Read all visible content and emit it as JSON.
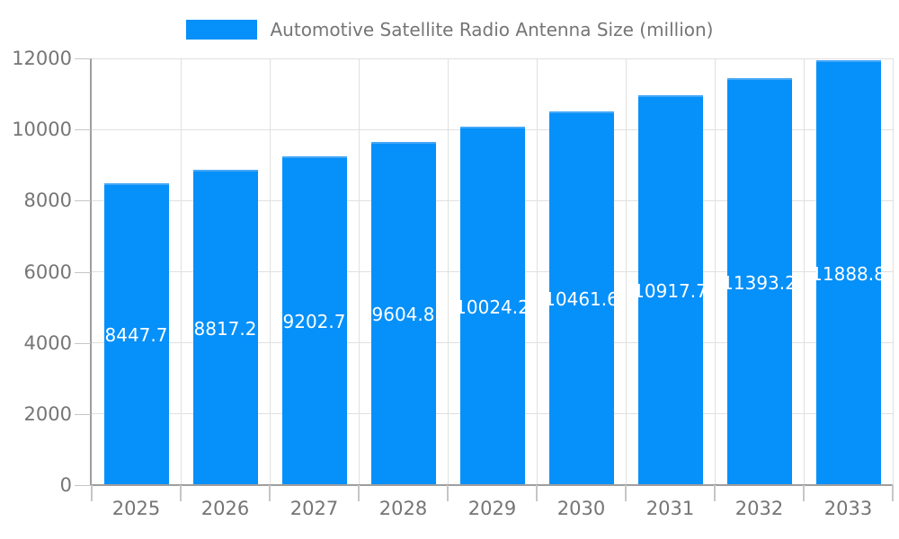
{
  "legend": {
    "label": "Automotive Satellite Radio Antenna Size (million)"
  },
  "colors": {
    "bar_fill": "#0590fa",
    "bar_top_edge": "#45a7f7",
    "grid_line": "#e0e0e0",
    "axis_line": "#9e9e9e",
    "tick_line": "#c6c6c6",
    "axis_text": "#757575",
    "value_label_text": "#ffffff",
    "background": "#ffffff"
  },
  "chart_data": {
    "type": "bar",
    "title": "Automotive Satellite Radio Antenna Size (million)",
    "categories": [
      "2025",
      "2026",
      "2027",
      "2028",
      "2029",
      "2030",
      "2031",
      "2032",
      "2033"
    ],
    "values": [
      8447.7,
      8817.2,
      9202.7,
      9604.8,
      10024.2,
      10461.6,
      10917.7,
      11393.2,
      11888.8
    ],
    "xlabel": "",
    "ylabel": "",
    "ylim": [
      0,
      12000
    ],
    "yticks": [
      0,
      2000,
      4000,
      6000,
      8000,
      10000,
      12000
    ],
    "grid": true,
    "legend_position": "top",
    "value_labels": "inside-center"
  }
}
